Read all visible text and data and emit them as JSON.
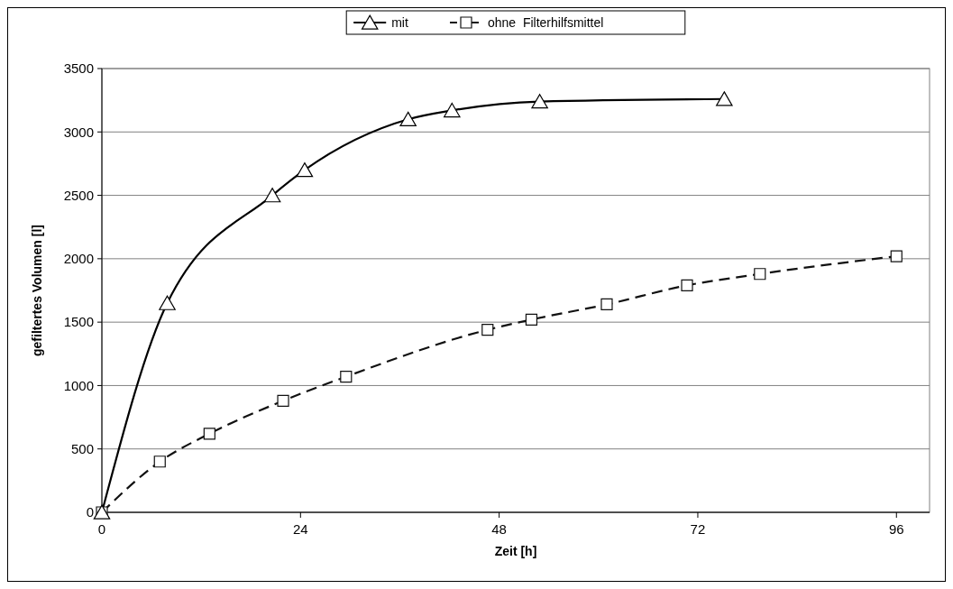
{
  "chart_data": {
    "type": "line",
    "xlabel": "Zeit [h]",
    "ylabel": "gefiltertes Volumen [l]",
    "xlim": [
      0,
      100
    ],
    "xticks": [
      0,
      24,
      48,
      72,
      96
    ],
    "ylim": [
      0,
      3500
    ],
    "yticks": [
      0,
      500,
      1000,
      1500,
      2000,
      2500,
      3000,
      3500
    ],
    "grid": "y",
    "legend": "top",
    "series": [
      {
        "name": "mit",
        "color": "#000000",
        "marker": "triangle",
        "line_style": "solid",
        "x": [
          0,
          7.9,
          20.6,
          24.5,
          37,
          42.3,
          52.9,
          75.2
        ],
        "values": [
          0,
          1650,
          2500,
          2700,
          3100,
          3170,
          3240,
          3260
        ]
      },
      {
        "name": "ohne  Filterhilfsmittel",
        "color": "#111111",
        "marker": "square",
        "line_style": "dashed",
        "x": [
          0,
          7,
          13,
          21.9,
          29.5,
          46.6,
          51.9,
          61,
          70.7,
          79.5,
          96
        ],
        "values": [
          0,
          400,
          620,
          880,
          1070,
          1440,
          1520,
          1640,
          1790,
          1880,
          2020
        ]
      }
    ]
  }
}
